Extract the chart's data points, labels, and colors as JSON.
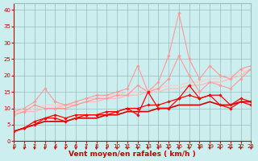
{
  "x": [
    0,
    1,
    2,
    3,
    4,
    5,
    6,
    7,
    8,
    9,
    10,
    11,
    12,
    13,
    14,
    15,
    16,
    17,
    18,
    19,
    20,
    21,
    22,
    23
  ],
  "lines": [
    {
      "y": [
        9,
        9,
        10,
        11,
        11,
        11,
        12,
        13,
        13,
        14,
        14,
        15,
        15,
        16,
        16,
        17,
        17,
        18,
        18,
        19,
        19,
        20,
        21,
        22
      ],
      "color": "#ffcccc",
      "lw": 0.9,
      "marker": null,
      "zorder": 1
    },
    {
      "y": [
        8,
        9,
        9,
        10,
        10,
        11,
        11,
        12,
        12,
        13,
        13,
        14,
        14,
        15,
        15,
        16,
        16,
        17,
        17,
        18,
        18,
        19,
        20,
        22
      ],
      "color": "#ffbbbb",
      "lw": 0.9,
      "marker": null,
      "zorder": 1
    },
    {
      "y": [
        9,
        10,
        12,
        16,
        12,
        11,
        12,
        13,
        14,
        14,
        15,
        16,
        23,
        15,
        18,
        26,
        39,
        25,
        19,
        23,
        20,
        19,
        22,
        23
      ],
      "color": "#ff9999",
      "lw": 0.8,
      "marker": "D",
      "ms": 1.8,
      "zorder": 2
    },
    {
      "y": [
        8,
        9,
        11,
        10,
        10,
        10,
        11,
        12,
        13,
        13,
        14,
        14,
        17,
        15,
        16,
        19,
        26,
        20,
        15,
        18,
        17,
        16,
        19,
        22
      ],
      "color": "#ff9999",
      "lw": 0.8,
      "marker": "D",
      "ms": 1.8,
      "zorder": 2
    },
    {
      "y": [
        3,
        4,
        5,
        6,
        6,
        6,
        7,
        7,
        7,
        8,
        8,
        9,
        9,
        9,
        10,
        10,
        11,
        11,
        11,
        12,
        11,
        11,
        12,
        12
      ],
      "color": "#cc0000",
      "lw": 1.2,
      "marker": null,
      "zorder": 3
    },
    {
      "y": [
        3,
        4,
        6,
        7,
        7,
        6,
        7,
        8,
        8,
        8,
        9,
        10,
        8,
        15,
        10,
        10,
        13,
        17,
        13,
        14,
        14,
        11,
        13,
        12
      ],
      "color": "#ff0000",
      "lw": 0.9,
      "marker": "D",
      "ms": 1.8,
      "zorder": 4
    },
    {
      "y": [
        3,
        4,
        5,
        7,
        8,
        7,
        8,
        8,
        8,
        9,
        9,
        10,
        10,
        11,
        11,
        12,
        13,
        14,
        13,
        14,
        11,
        10,
        12,
        11
      ],
      "color": "#ff0000",
      "lw": 0.9,
      "marker": "D",
      "ms": 1.8,
      "zorder": 4
    }
  ],
  "xlabel": "Vent moyen/en rafales ( km/h )",
  "xlim": [
    0,
    23
  ],
  "ylim": [
    0,
    42
  ],
  "yticks": [
    0,
    5,
    10,
    15,
    20,
    25,
    30,
    35,
    40
  ],
  "xticks": [
    0,
    1,
    2,
    3,
    4,
    5,
    6,
    7,
    8,
    9,
    10,
    11,
    12,
    13,
    14,
    15,
    16,
    17,
    18,
    19,
    20,
    21,
    22,
    23
  ],
  "bg_color": "#cceeee",
  "grid_color": "#99bbbb",
  "xlabel_color": "#cc0000",
  "tick_color": "#cc0000",
  "tick_labelsize": 5.0,
  "xlabel_fontsize": 6.5
}
